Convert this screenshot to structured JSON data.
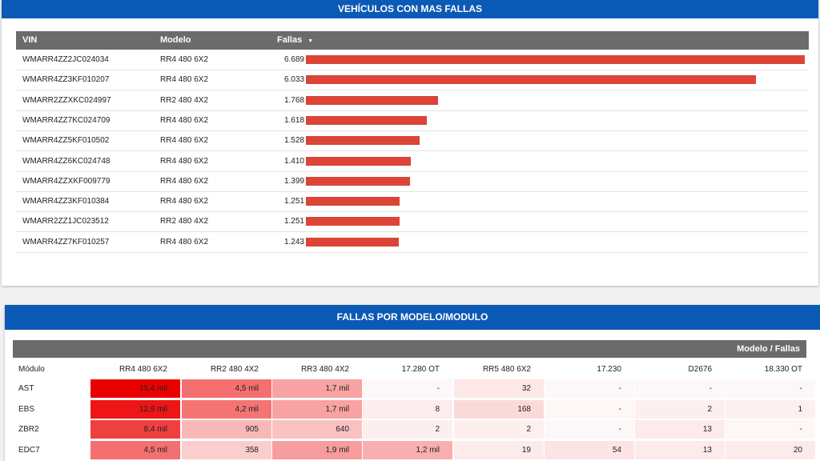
{
  "panel1": {
    "title": "VEHÍCULOS CON MAS FALLAS",
    "columns": {
      "vin": "VIN",
      "modelo": "Modelo",
      "fallas": "Fallas",
      "sort_icon": "caret-down-icon"
    },
    "bar_color": "#db4437",
    "max_value": 6689,
    "rows": [
      {
        "vin": "WMARR4ZZ2JC024034",
        "modelo": "RR4 480 6X2",
        "fallas": "6.689",
        "value": 6689
      },
      {
        "vin": "WMARR4ZZ3KF010207",
        "modelo": "RR4 480 6X2",
        "fallas": "6.033",
        "value": 6033
      },
      {
        "vin": "WMARR2ZZXKC024997",
        "modelo": "RR2 480 4X2",
        "fallas": "1.768",
        "value": 1768
      },
      {
        "vin": "WMARR4ZZ7KC024709",
        "modelo": "RR4 480 6X2",
        "fallas": "1.618",
        "value": 1618
      },
      {
        "vin": "WMARR4ZZ5KF010502",
        "modelo": "RR4 480 6X2",
        "fallas": "1.528",
        "value": 1528
      },
      {
        "vin": "WMARR4ZZ6KC024748",
        "modelo": "RR4 480 6X2",
        "fallas": "1.410",
        "value": 1410
      },
      {
        "vin": "WMARR4ZZXKF009779",
        "modelo": "RR4 480 6X2",
        "fallas": "1.399",
        "value": 1399
      },
      {
        "vin": "WMARR4ZZ3KF010384",
        "modelo": "RR4 480 6X2",
        "fallas": "1.251",
        "value": 1251
      },
      {
        "vin": "WMARR2ZZ1JC023512",
        "modelo": "RR2 480 4X2",
        "fallas": "1.251",
        "value": 1251
      },
      {
        "vin": "WMARR4ZZ7KF010257",
        "modelo": "RR4 480 6X2",
        "fallas": "1.243",
        "value": 1243
      }
    ]
  },
  "panel2": {
    "title": "FALLAS POR MODELO/MODULO",
    "header_label": "Modelo / Fallas",
    "row_header": "Módulo",
    "columns": [
      "RR4 480 6X2",
      "RR2 480 4X2",
      "RR3 480 4X2",
      "17.280 OT",
      "RR5 480 6X2",
      "17.230",
      "D2676",
      "18.330 OT"
    ],
    "rows": [
      {
        "module": "AST",
        "cells": [
          {
            "text": "15,4 mil",
            "v": 15400
          },
          {
            "text": "4,5 mil",
            "v": 4500
          },
          {
            "text": "1,7 mil",
            "v": 1700
          },
          {
            "text": "-",
            "v": 0
          },
          {
            "text": "32",
            "v": 32
          },
          {
            "text": "-",
            "v": 0
          },
          {
            "text": "-",
            "v": 0
          },
          {
            "text": "-",
            "v": 0
          }
        ]
      },
      {
        "module": "EBS",
        "cells": [
          {
            "text": "12,9 mil",
            "v": 12900
          },
          {
            "text": "4,2 mil",
            "v": 4200
          },
          {
            "text": "1,7 mil",
            "v": 1700
          },
          {
            "text": "8",
            "v": 8
          },
          {
            "text": "168",
            "v": 168
          },
          {
            "text": "-",
            "v": 0
          },
          {
            "text": "2",
            "v": 2
          },
          {
            "text": "1",
            "v": 1
          }
        ]
      },
      {
        "module": "ZBR2",
        "cells": [
          {
            "text": "8,4 mil",
            "v": 8400
          },
          {
            "text": "905",
            "v": 905
          },
          {
            "text": "640",
            "v": 640
          },
          {
            "text": "2",
            "v": 2
          },
          {
            "text": "2",
            "v": 2
          },
          {
            "text": "-",
            "v": 0
          },
          {
            "text": "13",
            "v": 13
          },
          {
            "text": "-",
            "v": 0
          }
        ]
      },
      {
        "module": "EDC7",
        "cells": [
          {
            "text": "4,5 mil",
            "v": 4500
          },
          {
            "text": "358",
            "v": 358
          },
          {
            "text": "1,9 mil",
            "v": 1900
          },
          {
            "text": "1,2 mil",
            "v": 1200
          },
          {
            "text": "19",
            "v": 19
          },
          {
            "text": "54",
            "v": 54
          },
          {
            "text": "13",
            "v": 13
          },
          {
            "text": "20",
            "v": 20
          }
        ]
      }
    ]
  }
}
